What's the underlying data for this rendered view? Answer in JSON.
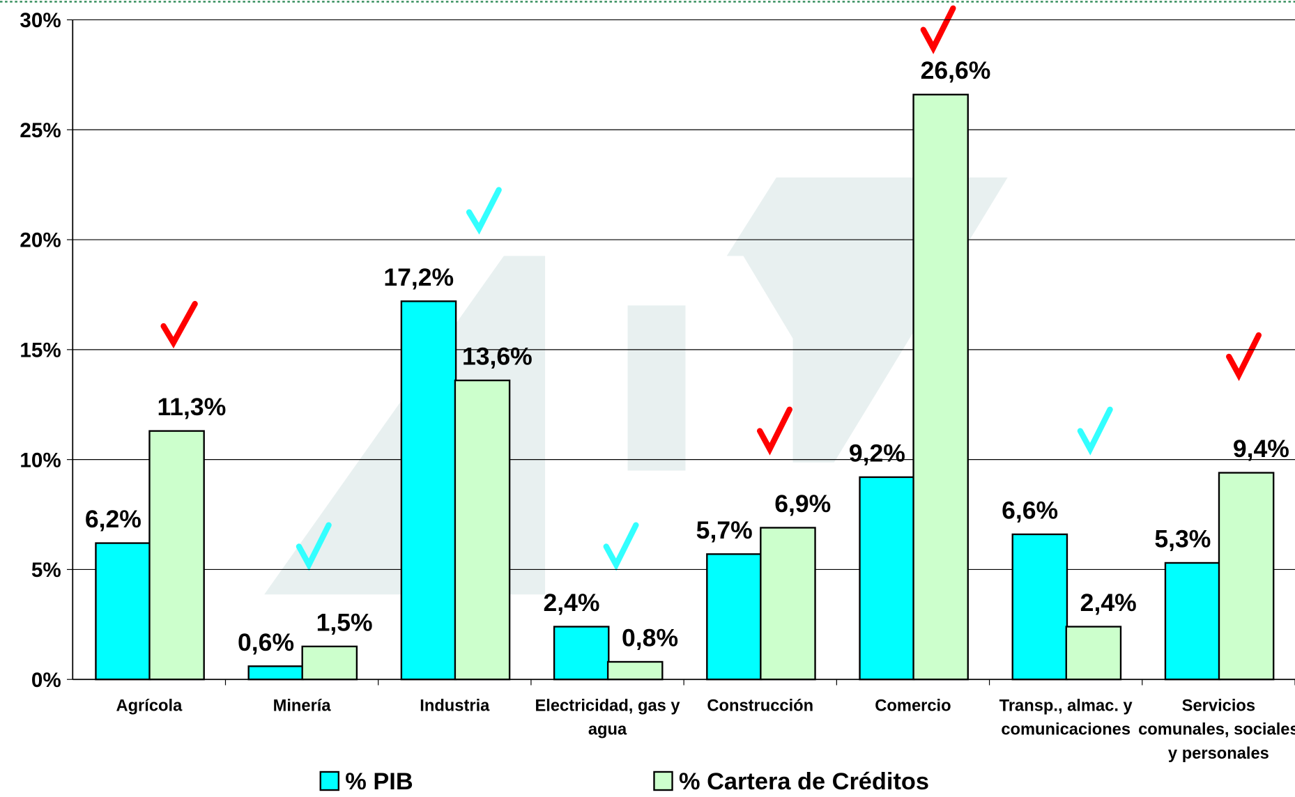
{
  "chart_data": {
    "type": "bar",
    "categories": [
      "Agrícola",
      "Minería",
      "Industria",
      "Electricidad, gas y agua",
      "Construcción",
      "Comercio",
      "Transp., almac. y comunicaciones",
      "Servicios comunales, sociales y personales"
    ],
    "series": [
      {
        "name": "% PIB",
        "color": "#00ffff",
        "values": [
          6.2,
          0.6,
          17.2,
          2.4,
          5.7,
          9.2,
          6.6,
          5.3
        ],
        "value_labels": [
          "6,2%",
          "0,6%",
          "17,2%",
          "2,4%",
          "5,7%",
          "9,2%",
          "6,6%",
          "5,3%"
        ]
      },
      {
        "name": "% Cartera de Créditos",
        "color": "#ccffcc",
        "values": [
          11.3,
          1.5,
          13.6,
          0.8,
          6.9,
          26.6,
          2.4,
          9.4
        ],
        "value_labels": [
          "11,3%",
          "1,5%",
          "13,6%",
          "0,8%",
          "6,9%",
          "26,6%",
          "2,4%",
          "9,4%"
        ]
      }
    ],
    "ylim": [
      0,
      30
    ],
    "yticks": [
      {
        "value": 0,
        "label": "0%"
      },
      {
        "value": 5,
        "label": "5%"
      },
      {
        "value": 10,
        "label": "10%"
      },
      {
        "value": 15,
        "label": "15%"
      },
      {
        "value": 20,
        "label": "20%"
      },
      {
        "value": 25,
        "label": "25%"
      },
      {
        "value": 30,
        "label": "30%"
      }
    ],
    "grid": true
  }
}
